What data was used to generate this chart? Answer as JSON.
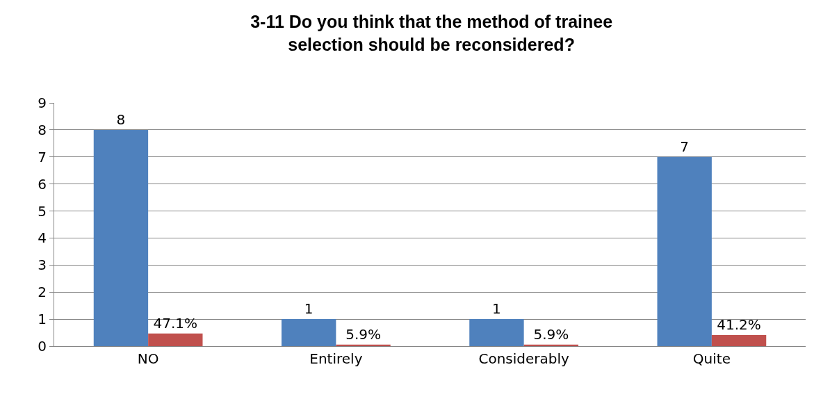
{
  "chart_data": {
    "type": "bar",
    "title": "3-11 Do you think that the method of trainee selection should be reconsidered?",
    "categories": [
      "NO",
      "Entirely",
      "Considerably",
      "Quite"
    ],
    "series": [
      {
        "color": "#4f81bd",
        "values": [
          8,
          1,
          1,
          7
        ],
        "value_labels": [
          "8",
          "1",
          "1",
          "7"
        ]
      },
      {
        "color": "#c0504d",
        "values": [
          0.471,
          0.059,
          0.059,
          0.412
        ],
        "value_labels": [
          "47.1%",
          "5.9%",
          "5.9%",
          "41.2%"
        ]
      }
    ],
    "ylim": [
      0,
      9
    ],
    "yticks": [
      0,
      1,
      2,
      3,
      4,
      5,
      6,
      7,
      8,
      9
    ],
    "grid": "y"
  }
}
